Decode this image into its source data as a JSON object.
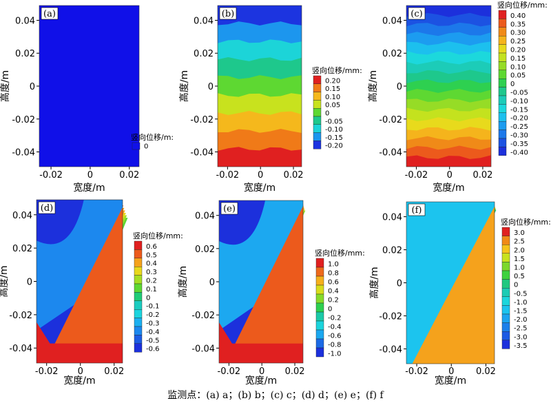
{
  "caption": "监测点：(a) a；(b) b；(c) c；(d) d；(e) e；(f) f",
  "chart_data": [
    {
      "type": "heatmap",
      "panel": "(a)",
      "xlabel": "宽度/m",
      "ylabel": "高度/m",
      "x_ticks": [
        "-0.02",
        "0",
        "0.02"
      ],
      "y_ticks": [
        "0.04",
        "0.02",
        "0",
        "-0.02",
        "-0.04"
      ],
      "legend_title": "竖向位移/m:",
      "legend": [
        {
          "label": "0",
          "color": "#1010e8"
        }
      ],
      "field": {
        "pattern": "uniform",
        "value": 0
      }
    },
    {
      "type": "heatmap",
      "panel": "(b)",
      "xlabel": "宽度/m",
      "ylabel": "高度/m",
      "x_ticks": [
        "-0.02",
        "0",
        "0.02"
      ],
      "y_ticks": [
        "0.04",
        "0.02",
        "0",
        "-0.02",
        "-0.04"
      ],
      "legend_title": "竖向位移/mm:",
      "legend": [
        {
          "label": "0.20",
          "color": "#e02020"
        },
        {
          "label": "0.15",
          "color": "#f07a18"
        },
        {
          "label": "0.10",
          "color": "#f5b81c"
        },
        {
          "label": "0.05",
          "color": "#c8e21e"
        },
        {
          "label": "0",
          "color": "#5ed832"
        },
        {
          "label": "-0.05",
          "color": "#1ec88c"
        },
        {
          "label": "-0.10",
          "color": "#1cd4d8"
        },
        {
          "label": "-0.15",
          "color": "#1c96ee"
        },
        {
          "label": "-0.20",
          "color": "#1c34e0"
        }
      ],
      "field": {
        "pattern": "vertical-gradient",
        "top": -0.2,
        "bottom": 0.2
      }
    },
    {
      "type": "heatmap",
      "panel": "(c)",
      "xlabel": "宽度/m",
      "ylabel": "高度/m",
      "x_ticks": [
        "-0.02",
        "0",
        "0.02"
      ],
      "y_ticks": [
        "0.04",
        "0.02",
        "0",
        "-0.02",
        "-0.04"
      ],
      "legend_title": "竖向位移/mm:",
      "legend": [
        {
          "label": "0.40",
          "color": "#e02020"
        },
        {
          "label": "0.35",
          "color": "#ec5a1c"
        },
        {
          "label": "0.30",
          "color": "#f08a18"
        },
        {
          "label": "0.25",
          "color": "#f5b41c"
        },
        {
          "label": "0.20",
          "color": "#e8da1c"
        },
        {
          "label": "0.15",
          "color": "#c4e21e"
        },
        {
          "label": "0.10",
          "color": "#96dc26"
        },
        {
          "label": "0.05",
          "color": "#5ed832"
        },
        {
          "label": "0",
          "color": "#2ed050"
        },
        {
          "label": "-0.05",
          "color": "#1ec88c"
        },
        {
          "label": "-0.10",
          "color": "#1cccb8"
        },
        {
          "label": "-0.15",
          "color": "#1cd8dc"
        },
        {
          "label": "-0.20",
          "color": "#1cc0ee"
        },
        {
          "label": "-0.25",
          "color": "#1c9cf0"
        },
        {
          "label": "-0.30",
          "color": "#1c78ea"
        },
        {
          "label": "-0.35",
          "color": "#1c52e2"
        },
        {
          "label": "-0.40",
          "color": "#1c30dc"
        }
      ],
      "field": {
        "pattern": "vertical-gradient",
        "top": -0.4,
        "bottom": 0.4
      }
    },
    {
      "type": "heatmap",
      "panel": "(d)",
      "xlabel": "宽度/m",
      "ylabel": "高度/m",
      "x_ticks": [
        "-0.02",
        "0",
        "0.02"
      ],
      "y_ticks": [
        "0.04",
        "0.02",
        "0",
        "-0.02",
        "-0.04"
      ],
      "legend_title": "竖向位移/mm:",
      "legend": [
        {
          "label": "0.6",
          "color": "#e02020"
        },
        {
          "label": "0.5",
          "color": "#ec5a1c"
        },
        {
          "label": "0.4",
          "color": "#f5a21c"
        },
        {
          "label": "0.3",
          "color": "#e8d81c"
        },
        {
          "label": "0.2",
          "color": "#a6de22"
        },
        {
          "label": "0.1",
          "color": "#5ed832"
        },
        {
          "label": "0",
          "color": "#20cc78"
        },
        {
          "label": "-0.1",
          "color": "#1cccc0"
        },
        {
          "label": "-0.2",
          "color": "#1cd4de"
        },
        {
          "label": "-0.3",
          "color": "#1cb0f0"
        },
        {
          "label": "-0.4",
          "color": "#1c88ee"
        },
        {
          "label": "-0.5",
          "color": "#1c5ce4"
        },
        {
          "label": "-0.6",
          "color": "#1c30dc"
        }
      ],
      "field": {
        "pattern": "diagonal-shear",
        "band": "wide"
      }
    },
    {
      "type": "heatmap",
      "panel": "(e)",
      "xlabel": "宽度/m",
      "ylabel": "高度/m",
      "x_ticks": [
        "-0.02",
        "0",
        "0.02"
      ],
      "y_ticks": [
        "0.04",
        "0.02",
        "0",
        "-0.02",
        "-0.04"
      ],
      "legend_title": "竖向位移/mm:",
      "legend": [
        {
          "label": "1.0",
          "color": "#e02020"
        },
        {
          "label": "0.8",
          "color": "#ee6a1c"
        },
        {
          "label": "0.6",
          "color": "#f5b01c"
        },
        {
          "label": "0.4",
          "color": "#d8dc1c"
        },
        {
          "label": "0.2",
          "color": "#86da2a"
        },
        {
          "label": "0",
          "color": "#2ed050"
        },
        {
          "label": "-0.2",
          "color": "#1ccaa8"
        },
        {
          "label": "-0.4",
          "color": "#1cd4dc"
        },
        {
          "label": "-0.6",
          "color": "#1ca8f0"
        },
        {
          "label": "-0.8",
          "color": "#1c6ae6"
        },
        {
          "label": "-1.0",
          "color": "#1c30dc"
        }
      ],
      "field": {
        "pattern": "diagonal-shear",
        "band": "medium"
      }
    },
    {
      "type": "heatmap",
      "panel": "(f)",
      "xlabel": "宽度/m",
      "ylabel": "高度/m",
      "x_ticks": [
        "-0.02",
        "0",
        "0.02"
      ],
      "y_ticks": [
        "0.04",
        "0.02",
        "0",
        "-0.02",
        "-0.04"
      ],
      "legend_title": "竖向位移/mm:",
      "legend": [
        {
          "label": "3.0",
          "color": "#e02020"
        },
        {
          "label": "2.5",
          "color": "#f08a18"
        },
        {
          "label": "2.0",
          "color": "#f5c41c"
        },
        {
          "label": "1.5",
          "color": "#c8e21e"
        },
        {
          "label": "1.0",
          "color": "#7cd82c"
        },
        {
          "label": "0.5",
          "color": "#3ed23e"
        },
        {
          "label": "0",
          "color": "#20c880"
        },
        {
          "label": "-0.5",
          "color": "#1cccb4"
        },
        {
          "label": "-1.0",
          "color": "#1cd6dc"
        },
        {
          "label": "-1.5",
          "color": "#1cc4ee"
        },
        {
          "label": "-2.0",
          "color": "#1ca4f0"
        },
        {
          "label": "-2.5",
          "color": "#1c80ea"
        },
        {
          "label": "-3.0",
          "color": "#1c5ae4"
        },
        {
          "label": "-3.5",
          "color": "#1c30dc"
        }
      ],
      "field": {
        "pattern": "diagonal-shear",
        "band": "narrow"
      }
    }
  ]
}
